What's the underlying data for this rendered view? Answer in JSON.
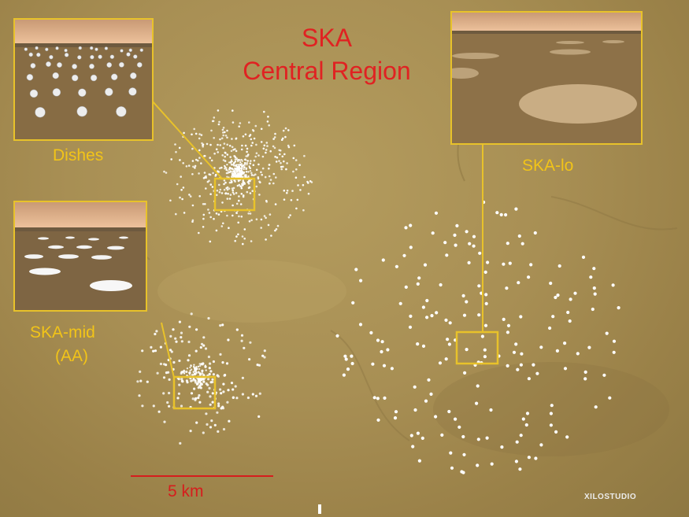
{
  "title": {
    "line1": "SKA",
    "line2": "Central Region"
  },
  "labels": {
    "dishes": "Dishes",
    "ska_lo": "SKA-lo",
    "ska_mid_line1": "SKA-mid",
    "ska_mid_line2": "(AA)"
  },
  "scale_bar": {
    "label": "5 km"
  },
  "credit": "XILOSTUDIO",
  "colors": {
    "title": "#e02222",
    "labels": "#f2c418",
    "frames": "#e8c22a",
    "scale_bar": "#d61d1d",
    "stations": "#ffffff"
  }
}
